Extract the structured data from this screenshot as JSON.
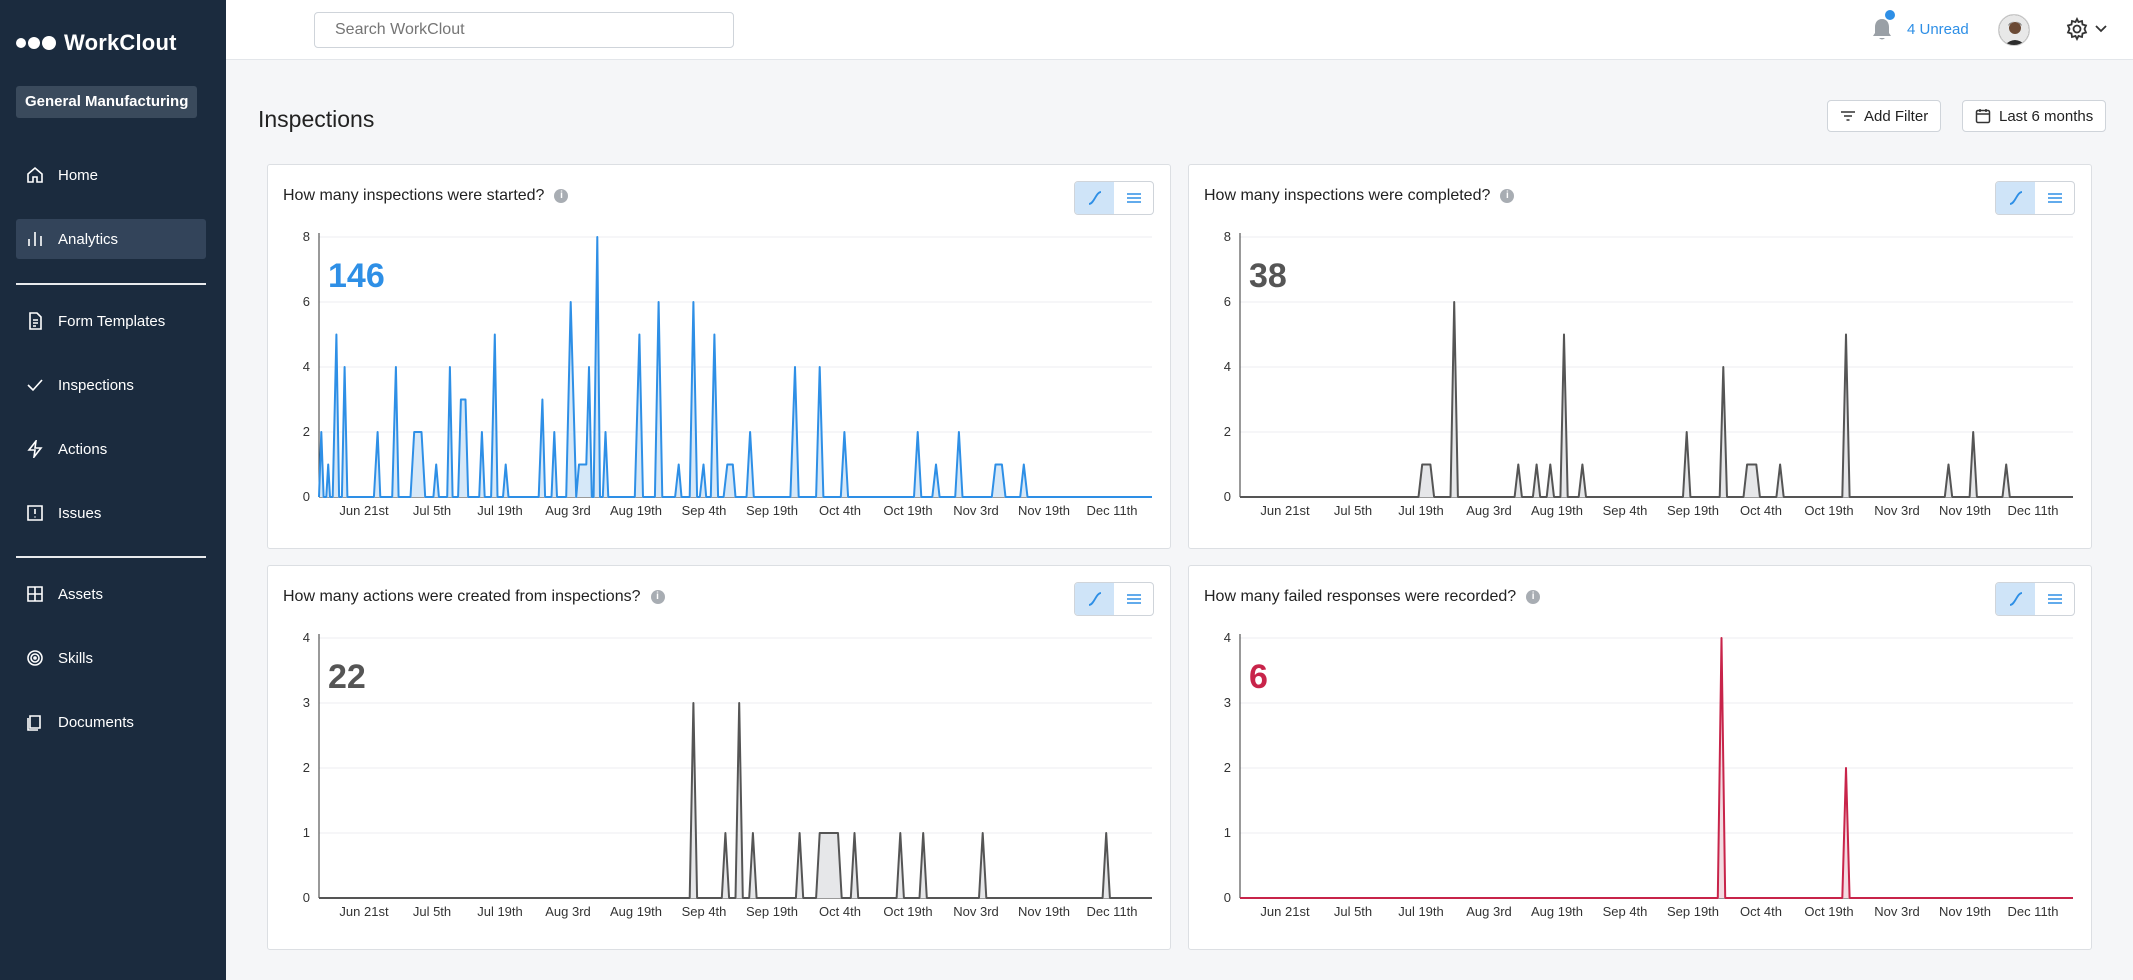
{
  "app": {
    "brand": "WorkClout",
    "org": "General Manufacturing"
  },
  "sidebar": {
    "items": [
      {
        "label": "Home",
        "icon": "home-icon"
      },
      {
        "label": "Analytics",
        "icon": "bar-chart-icon",
        "active": true
      },
      {
        "label": "Form Templates",
        "icon": "document-icon"
      },
      {
        "label": "Inspections",
        "icon": "check-icon"
      },
      {
        "label": "Actions",
        "icon": "lightning-icon"
      },
      {
        "label": "Issues",
        "icon": "alert-square-icon"
      },
      {
        "label": "Assets",
        "icon": "grid-icon"
      },
      {
        "label": "Skills",
        "icon": "target-icon"
      },
      {
        "label": "Documents",
        "icon": "folder-icon"
      }
    ]
  },
  "topbar": {
    "search_placeholder": "Search WorkClout",
    "unread": "4 Unread"
  },
  "page": {
    "title": "Inspections",
    "add_filter": "Add Filter",
    "date_range": "Last 6 months"
  },
  "colors": {
    "accent": "#2e8fe6",
    "sidebar": "#1b2b3e",
    "gray_series": "#555555",
    "red_series": "#c8244a"
  },
  "chart_data": [
    {
      "type": "area",
      "title": "How many inspections were started?",
      "total": "146",
      "color": "#2e8fe6",
      "fill": "#d6e8f8",
      "yticks": [
        0,
        2,
        4,
        6,
        8
      ],
      "ylim": [
        0,
        8
      ],
      "xticks": [
        "Jun 21st",
        "Jul 5th",
        "Jul 19th",
        "Aug 3rd",
        "Aug 19th",
        "Sep 4th",
        "Sep 19th",
        "Oct 4th",
        "Oct 19th",
        "Nov 3rd",
        "Nov 19th",
        "Dec 11th"
      ],
      "x_span_days": 182,
      "points": [
        [
          0,
          0
        ],
        [
          0.5,
          2
        ],
        [
          1,
          0
        ],
        [
          1.6,
          0
        ],
        [
          2,
          1
        ],
        [
          2.4,
          0
        ],
        [
          3,
          0
        ],
        [
          3.8,
          5
        ],
        [
          4.4,
          0
        ],
        [
          5,
          0
        ],
        [
          5.6,
          4
        ],
        [
          6.2,
          0
        ],
        [
          12,
          0
        ],
        [
          12.8,
          2
        ],
        [
          13.4,
          0
        ],
        [
          16,
          0
        ],
        [
          16.8,
          4
        ],
        [
          17.4,
          0
        ],
        [
          20,
          0
        ],
        [
          20.8,
          2
        ],
        [
          22.4,
          2
        ],
        [
          23.2,
          0
        ],
        [
          25,
          0
        ],
        [
          25.6,
          1
        ],
        [
          26.2,
          0
        ],
        [
          28,
          0
        ],
        [
          28.6,
          4
        ],
        [
          29.2,
          0
        ],
        [
          30.4,
          0
        ],
        [
          31,
          3
        ],
        [
          32,
          3
        ],
        [
          32.6,
          0
        ],
        [
          35,
          0
        ],
        [
          35.6,
          2
        ],
        [
          36.2,
          0
        ],
        [
          37.6,
          0
        ],
        [
          38.4,
          5
        ],
        [
          39,
          0
        ],
        [
          40.2,
          0
        ],
        [
          40.8,
          1
        ],
        [
          41.4,
          0
        ],
        [
          48,
          0
        ],
        [
          48.8,
          3
        ],
        [
          49.4,
          0
        ],
        [
          50.8,
          0
        ],
        [
          51.4,
          2
        ],
        [
          52,
          0
        ],
        [
          54,
          0
        ],
        [
          55,
          6
        ],
        [
          56.2,
          0
        ],
        [
          56.8,
          1
        ],
        [
          58.4,
          1
        ],
        [
          59,
          4
        ],
        [
          59.6,
          0
        ],
        [
          60,
          0
        ],
        [
          60.8,
          8
        ],
        [
          61.4,
          0
        ],
        [
          62,
          0
        ],
        [
          62.6,
          2
        ],
        [
          63.2,
          0
        ],
        [
          69,
          0
        ],
        [
          70,
          5
        ],
        [
          70.8,
          0
        ],
        [
          73.4,
          0
        ],
        [
          74.2,
          6
        ],
        [
          75,
          0
        ],
        [
          77.8,
          0
        ],
        [
          78.6,
          1
        ],
        [
          79.2,
          0
        ],
        [
          81,
          0
        ],
        [
          81.8,
          6
        ],
        [
          82.6,
          0
        ],
        [
          83.2,
          0
        ],
        [
          84,
          1
        ],
        [
          84.6,
          0
        ],
        [
          85.6,
          0
        ],
        [
          86.4,
          5
        ],
        [
          87.2,
          0
        ],
        [
          88.4,
          0
        ],
        [
          89.2,
          1
        ],
        [
          90.4,
          1
        ],
        [
          91,
          0
        ],
        [
          93.4,
          0
        ],
        [
          94.2,
          2
        ],
        [
          95,
          0
        ],
        [
          103,
          0
        ],
        [
          104,
          4
        ],
        [
          104.8,
          0
        ],
        [
          108.6,
          0
        ],
        [
          109.4,
          4
        ],
        [
          110.2,
          0
        ],
        [
          114,
          0
        ],
        [
          114.8,
          2
        ],
        [
          115.6,
          0
        ],
        [
          130,
          0
        ],
        [
          130.8,
          2
        ],
        [
          131.6,
          0
        ],
        [
          134,
          0
        ],
        [
          134.8,
          1
        ],
        [
          135.6,
          0
        ],
        [
          139,
          0
        ],
        [
          139.8,
          2
        ],
        [
          140.6,
          0
        ],
        [
          147,
          0
        ],
        [
          147.8,
          1
        ],
        [
          149.2,
          1
        ],
        [
          150,
          0
        ],
        [
          153.2,
          0
        ],
        [
          154,
          1
        ],
        [
          154.8,
          0
        ],
        [
          182,
          0
        ]
      ]
    },
    {
      "type": "area",
      "title": "How many inspections were completed?",
      "total": "38",
      "color": "#555555",
      "fill": "#e6e7e9",
      "yticks": [
        0,
        2,
        4,
        6,
        8
      ],
      "ylim": [
        0,
        8
      ],
      "xticks": [
        "Jun 21st",
        "Jul 5th",
        "Jul 19th",
        "Aug 3rd",
        "Aug 19th",
        "Sep 4th",
        "Sep 19th",
        "Oct 4th",
        "Oct 19th",
        "Nov 3rd",
        "Nov 19th",
        "Dec 11th"
      ],
      "x_span_days": 182,
      "points": [
        [
          0,
          0
        ],
        [
          39,
          0
        ],
        [
          39.8,
          1
        ],
        [
          41.6,
          1
        ],
        [
          42.4,
          0
        ],
        [
          46,
          0
        ],
        [
          46.8,
          6
        ],
        [
          47.6,
          0
        ],
        [
          60,
          0
        ],
        [
          60.8,
          1
        ],
        [
          61.6,
          0
        ],
        [
          64,
          0
        ],
        [
          64.8,
          1
        ],
        [
          65.6,
          0
        ],
        [
          67,
          0
        ],
        [
          67.8,
          1
        ],
        [
          68.6,
          0
        ],
        [
          70,
          0
        ],
        [
          70.8,
          5
        ],
        [
          71.6,
          0
        ],
        [
          74,
          0
        ],
        [
          74.8,
          1
        ],
        [
          75.6,
          0
        ],
        [
          96.8,
          0
        ],
        [
          97.6,
          2
        ],
        [
          98.4,
          0
        ],
        [
          104.8,
          0
        ],
        [
          105.6,
          4
        ],
        [
          106.4,
          0
        ],
        [
          110,
          0
        ],
        [
          110.8,
          1
        ],
        [
          112.8,
          1
        ],
        [
          113.6,
          0
        ],
        [
          117.2,
          0
        ],
        [
          118,
          1
        ],
        [
          118.8,
          0
        ],
        [
          131.6,
          0
        ],
        [
          132.4,
          5
        ],
        [
          133.2,
          0
        ],
        [
          154,
          0
        ],
        [
          154.8,
          1
        ],
        [
          155.6,
          0
        ],
        [
          159.4,
          0
        ],
        [
          160.2,
          2
        ],
        [
          161,
          0
        ],
        [
          166.6,
          0
        ],
        [
          167.4,
          1
        ],
        [
          168.2,
          0
        ],
        [
          182,
          0
        ]
      ]
    },
    {
      "type": "area",
      "title": "How many actions were created from inspections?",
      "total": "22",
      "color": "#555555",
      "fill": "#e6e7e9",
      "yticks": [
        0,
        1,
        2,
        3,
        4
      ],
      "ylim": [
        0,
        4
      ],
      "xticks": [
        "Jun 21st",
        "Jul 5th",
        "Jul 19th",
        "Aug 3rd",
        "Aug 19th",
        "Sep 4th",
        "Sep 19th",
        "Oct 4th",
        "Oct 19th",
        "Nov 3rd",
        "Nov 19th",
        "Dec 11th"
      ],
      "x_span_days": 182,
      "points": [
        [
          0,
          0
        ],
        [
          81,
          0
        ],
        [
          81.8,
          3
        ],
        [
          82.6,
          0
        ],
        [
          88,
          0
        ],
        [
          88.8,
          1
        ],
        [
          89.6,
          0
        ],
        [
          91,
          0
        ],
        [
          91.8,
          3
        ],
        [
          92.6,
          0
        ],
        [
          94,
          0
        ],
        [
          94.8,
          1
        ],
        [
          95.6,
          0
        ],
        [
          104.2,
          0
        ],
        [
          105,
          1
        ],
        [
          105.8,
          0
        ],
        [
          108.6,
          0
        ],
        [
          109.4,
          1
        ],
        [
          113.4,
          1
        ],
        [
          114.2,
          0
        ],
        [
          116.2,
          0
        ],
        [
          117,
          1
        ],
        [
          117.8,
          0
        ],
        [
          126.2,
          0
        ],
        [
          127,
          1
        ],
        [
          127.8,
          0
        ],
        [
          131.2,
          0
        ],
        [
          132,
          1
        ],
        [
          132.8,
          0
        ],
        [
          144.2,
          0
        ],
        [
          145,
          1
        ],
        [
          145.8,
          0
        ],
        [
          171.2,
          0
        ],
        [
          172,
          1
        ],
        [
          172.8,
          0
        ],
        [
          182,
          0
        ]
      ]
    },
    {
      "type": "area",
      "title": "How many failed responses were recorded?",
      "total": "6",
      "color": "#c8244a",
      "fill": "#f3dbe1",
      "yticks": [
        0,
        1,
        2,
        3,
        4
      ],
      "ylim": [
        0,
        4
      ],
      "xticks": [
        "Jun 21st",
        "Jul 5th",
        "Jul 19th",
        "Aug 3rd",
        "Aug 19th",
        "Sep 4th",
        "Sep 19th",
        "Oct 4th",
        "Oct 19th",
        "Nov 3rd",
        "Nov 19th",
        "Dec 11th"
      ],
      "x_span_days": 182,
      "points": [
        [
          0,
          0
        ],
        [
          104.4,
          0
        ],
        [
          105.2,
          4
        ],
        [
          106,
          0
        ],
        [
          131.6,
          0
        ],
        [
          132.4,
          2
        ],
        [
          133.2,
          0
        ],
        [
          182,
          0
        ]
      ]
    }
  ]
}
